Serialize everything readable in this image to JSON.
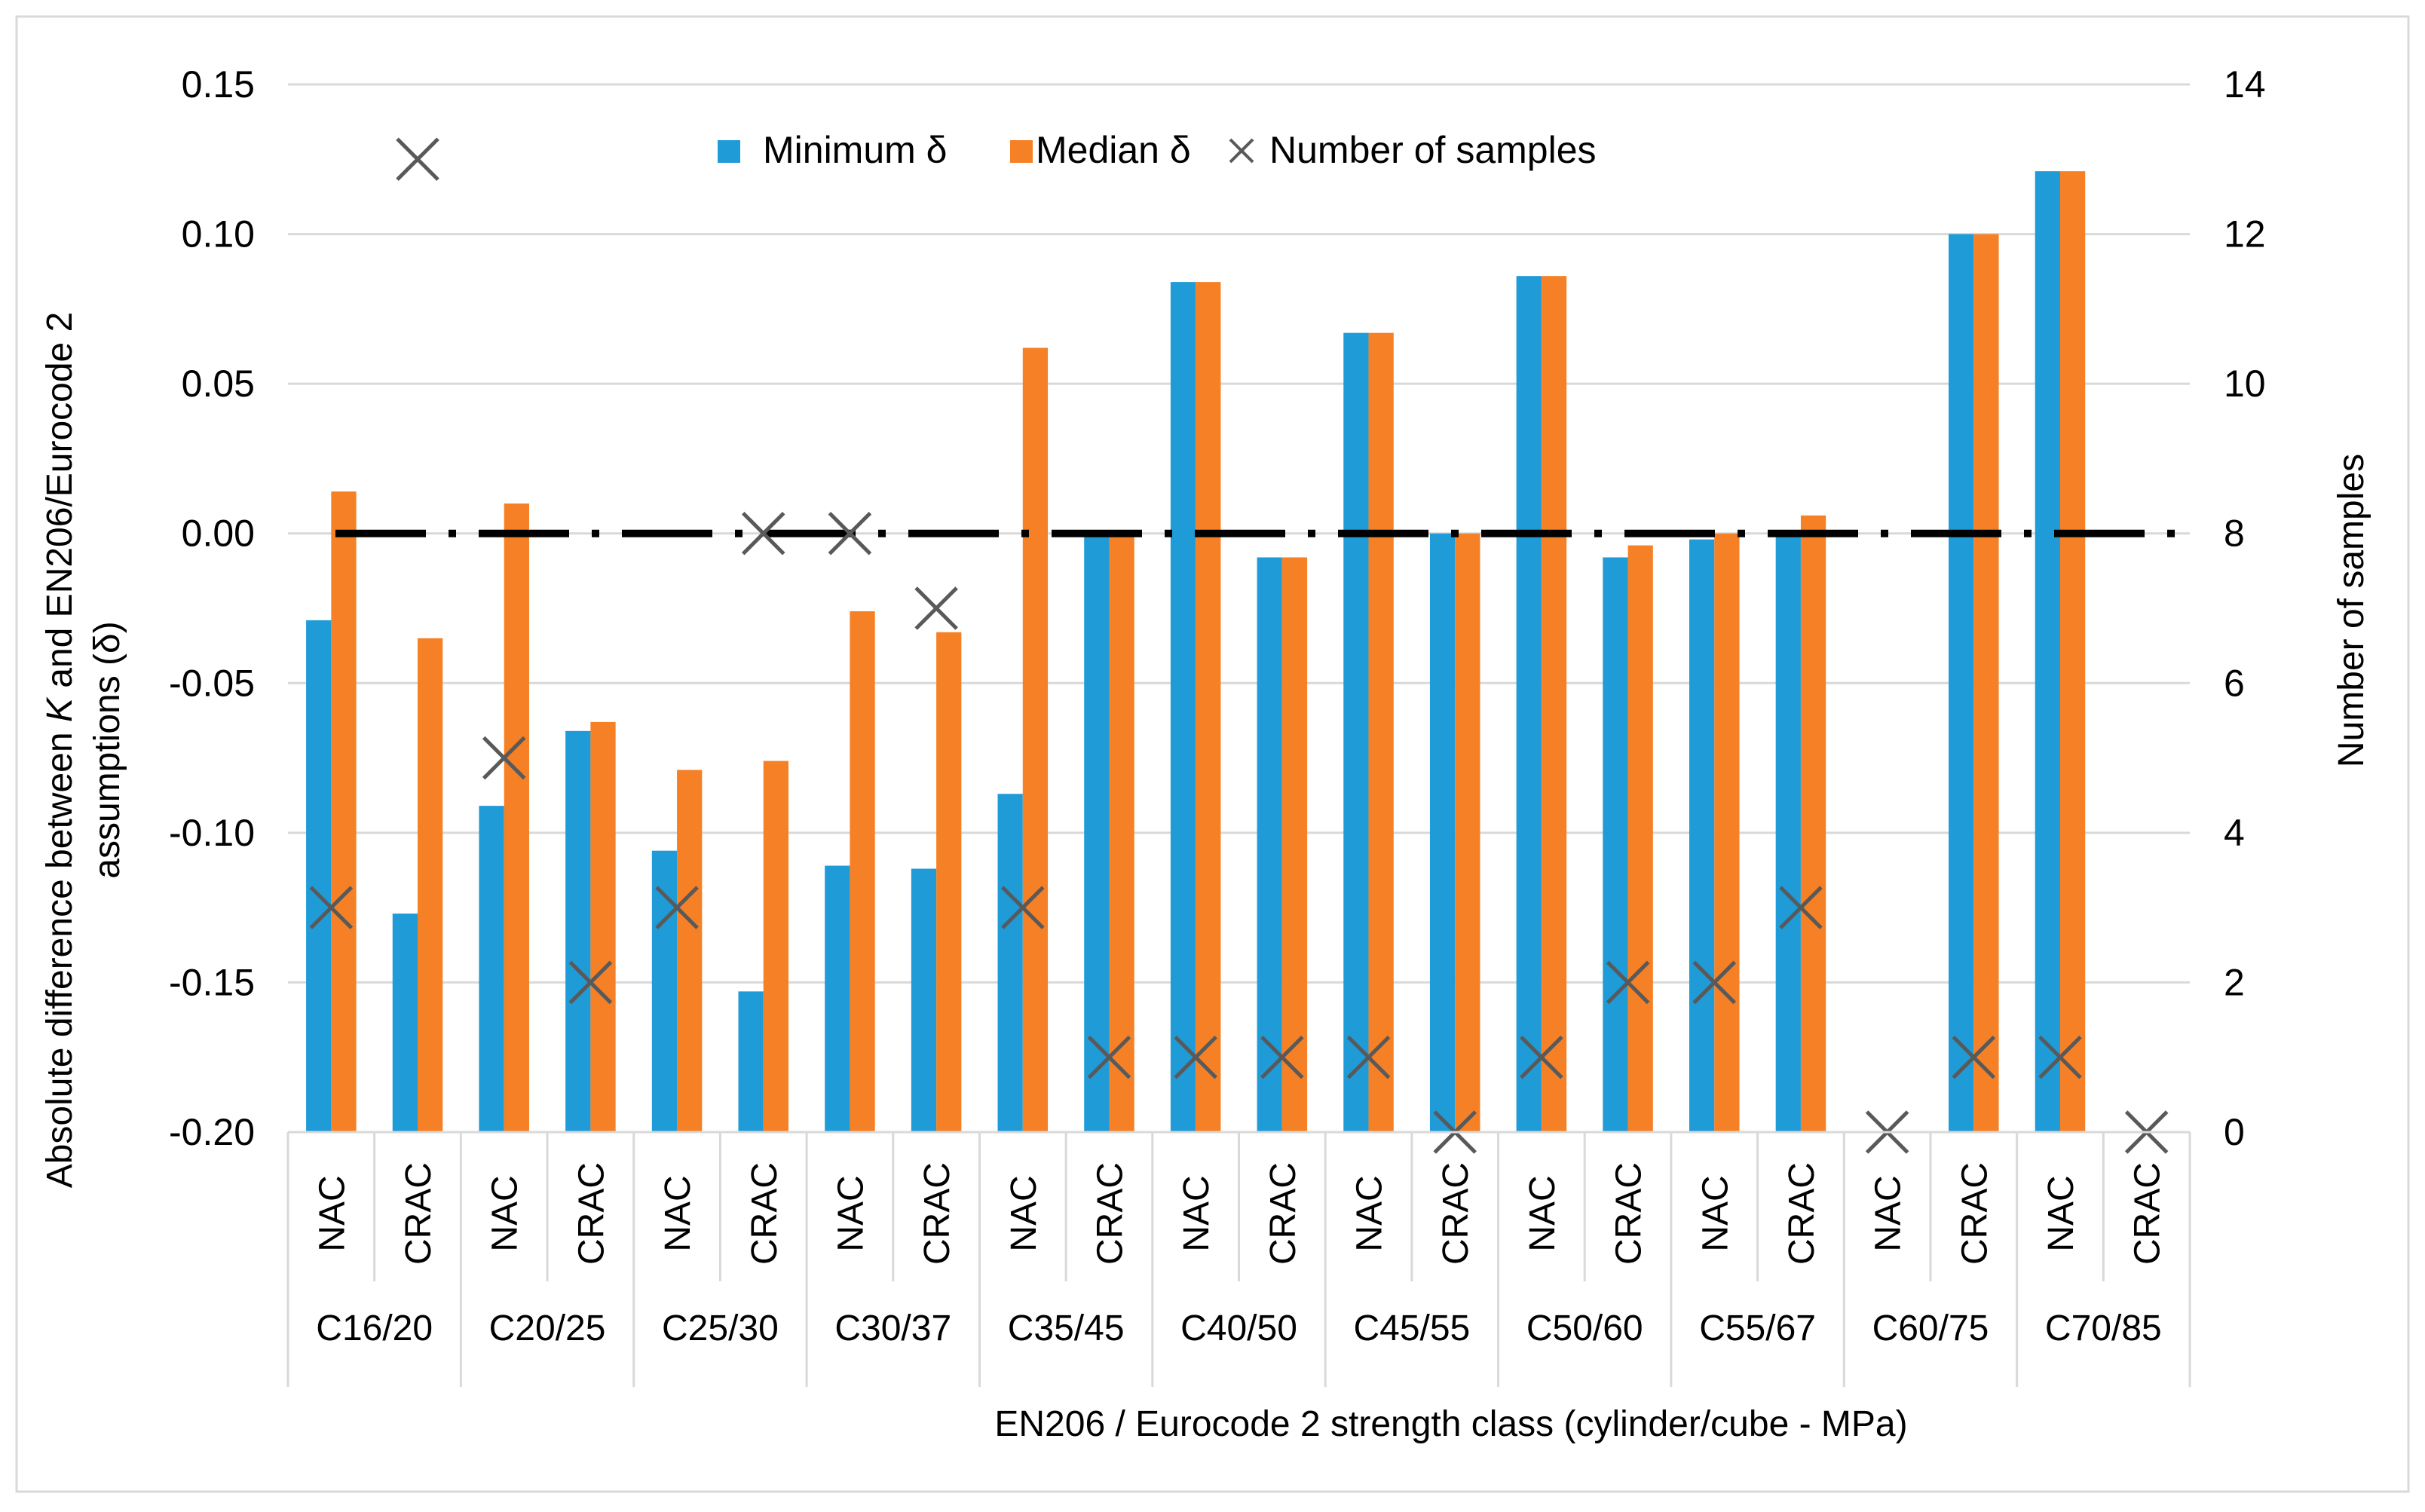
{
  "chart_data": {
    "type": "bar",
    "title": "",
    "xlabel": "EN206 / Eurocode 2 strength class (cylinder/cube - MPa)",
    "ylabel": "Absolute difference between K and EN206/Eurocode 2 assumptions (δ)",
    "ylabel_parts": {
      "pre": "Absolute difference between ",
      "ital": "K",
      "post": " and EN206/Eurocode 2",
      "line2": "assumptions (δ)"
    },
    "y2label": "Number of samples",
    "ylim": [
      -0.2,
      0.15
    ],
    "y_ticks": [
      "0.15",
      "0.10",
      "0.05",
      "0.00",
      "-0.05",
      "-0.10",
      "-0.15",
      "-0.20"
    ],
    "y_tick_values": [
      0.15,
      0.1,
      0.05,
      0.0,
      -0.05,
      -0.1,
      -0.15,
      -0.2
    ],
    "y2lim": [
      0,
      14
    ],
    "y2_ticks": [
      "14",
      "12",
      "10",
      "8",
      "6",
      "4",
      "2",
      "0"
    ],
    "y2_tick_values": [
      14,
      12,
      10,
      8,
      6,
      4,
      2,
      0
    ],
    "groups": [
      "C16/20",
      "C20/25",
      "C25/30",
      "C30/37",
      "C35/45",
      "C40/50",
      "C45/55",
      "C50/60",
      "C55/67",
      "C60/75",
      "C70/85"
    ],
    "subcategories": [
      "NAC",
      "CRAC"
    ],
    "categories": [
      "NAC",
      "CRAC",
      "NAC",
      "CRAC",
      "NAC",
      "CRAC",
      "NAC",
      "CRAC",
      "NAC",
      "CRAC",
      "NAC",
      "CRAC",
      "NAC",
      "CRAC",
      "NAC",
      "CRAC",
      "NAC",
      "CRAC",
      "NAC",
      "CRAC",
      "NAC",
      "CRAC"
    ],
    "series": [
      {
        "name": "Minimum δ",
        "kind": "bar",
        "axis": "left",
        "color": "#1F9BD7",
        "values": [
          -0.029,
          -0.127,
          -0.091,
          -0.066,
          -0.106,
          -0.153,
          -0.111,
          -0.112,
          -0.087,
          0.0,
          0.084,
          -0.008,
          0.067,
          0.0,
          0.086,
          -0.008,
          -0.002,
          0.0,
          null,
          0.1,
          0.121,
          null
        ]
      },
      {
        "name": "Median δ",
        "kind": "bar",
        "axis": "left",
        "color": "#F58025",
        "values": [
          0.014,
          -0.035,
          0.01,
          -0.063,
          -0.079,
          -0.076,
          -0.026,
          -0.033,
          0.062,
          0.0,
          0.084,
          -0.008,
          0.067,
          0.0,
          0.086,
          -0.004,
          0.0,
          0.006,
          null,
          0.1,
          0.121,
          null
        ]
      },
      {
        "name": "Number of samples",
        "kind": "marker",
        "axis": "right",
        "color": "#595959",
        "values": [
          3,
          13,
          5,
          2,
          3,
          8,
          8,
          7,
          3,
          1,
          1,
          1,
          1,
          0,
          1,
          2,
          2,
          3,
          0,
          1,
          1,
          0
        ]
      }
    ],
    "reference_line": {
      "y": 0.0,
      "style": "dash-dot"
    },
    "legend": {
      "position": "top-center",
      "entries": [
        "Minimum δ",
        "Median δ",
        "Number of samples"
      ]
    },
    "grid": true
  }
}
